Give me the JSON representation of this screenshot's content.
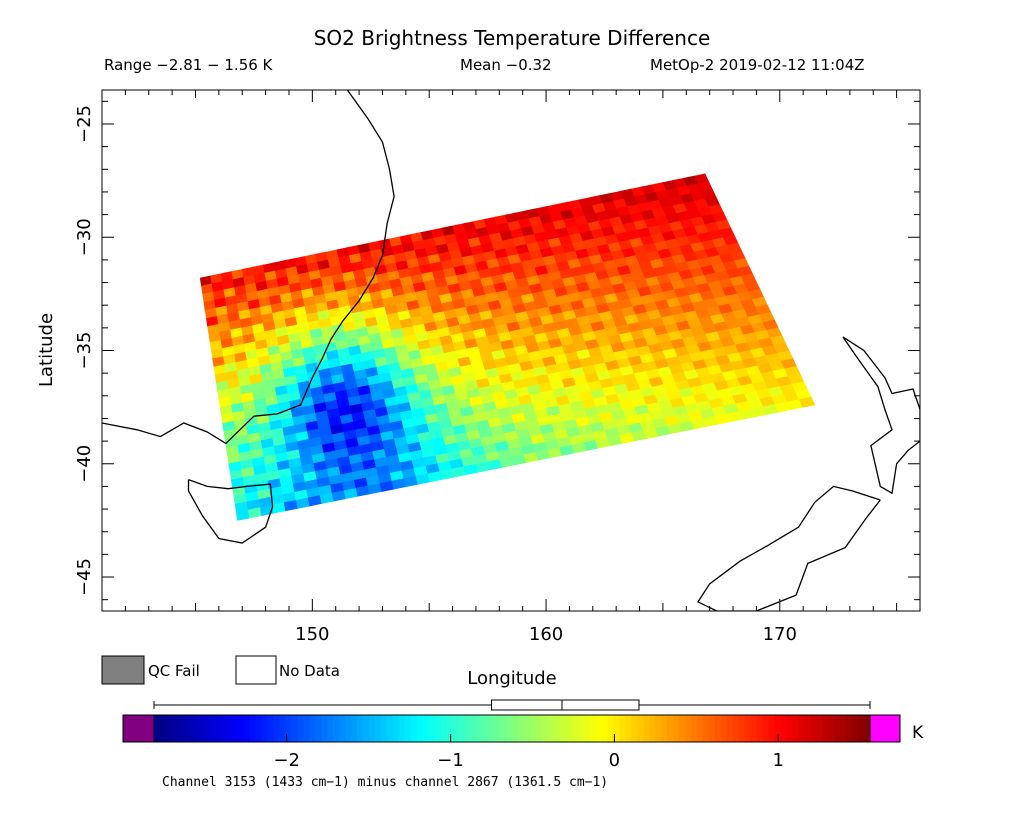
{
  "title": "SO2 Brightness Temperature Difference",
  "range_text": "Range −2.81 − 1.56 K",
  "mean_text": "Mean −0.32",
  "satellite_text": "MetOp-2 2019-02-12 11:04Z",
  "axes": {
    "xlabel": "Longitude",
    "ylabel": "Latitude",
    "xlim": [
      141,
      176
    ],
    "ylim": [
      -46.5,
      -23.5
    ],
    "xticks": [
      150,
      160,
      170
    ],
    "xtick_labels": [
      "150",
      "160",
      "170"
    ],
    "yticks": [
      -25,
      -30,
      -35,
      -40,
      -45
    ],
    "ytick_labels": [
      "−25",
      "−30",
      "−35",
      "−40",
      "−45"
    ]
  },
  "legend": {
    "qc_fail_label": "QC Fail",
    "no_data_label": "No Data",
    "qc_fail_color": "#808080",
    "no_data_color": "#ffffff"
  },
  "colorbar": {
    "min": -2.81,
    "max": 1.56,
    "unit": "K",
    "ticks": [
      -2,
      -1,
      0,
      1
    ],
    "tick_labels": [
      "−2",
      "−1",
      "0",
      "1"
    ],
    "under_color": "#800080",
    "over_color": "#ff00ff",
    "box_whisker": {
      "min": -2.81,
      "q1": -0.75,
      "median": -0.32,
      "q3": 0.15,
      "max": 1.56
    }
  },
  "footnote": "Channel 3153 (1433 cm−1) minus channel 2867 (1361.5 cm−1)",
  "chart_data": {
    "type": "heatmap",
    "title": "SO2 Brightness Temperature Difference",
    "xlabel": "Longitude",
    "ylabel": "Latitude",
    "xlim": [
      141,
      176
    ],
    "ylim": [
      -46.5,
      -23.5
    ],
    "value_range": [
      -2.81,
      1.56
    ],
    "mean": -0.32,
    "unit": "K",
    "swath_corners": [
      [
        145.2,
        -31.8
      ],
      [
        166.8,
        -27.2
      ],
      [
        171.5,
        -37.4
      ],
      [
        146.8,
        -42.5
      ]
    ],
    "coastlines": {
      "australia": [
        [
          141,
          -38.2
        ],
        [
          142.5,
          -38.5
        ],
        [
          143.5,
          -38.8
        ],
        [
          144.5,
          -38.2
        ],
        [
          145.5,
          -38.6
        ],
        [
          146.3,
          -39.1
        ],
        [
          147.5,
          -37.9
        ],
        [
          148.5,
          -37.8
        ],
        [
          149.5,
          -37.4
        ],
        [
          150.0,
          -36.2
        ],
        [
          150.4,
          -35.4
        ],
        [
          150.8,
          -34.5
        ],
        [
          151.3,
          -33.7
        ],
        [
          152.0,
          -32.8
        ],
        [
          152.6,
          -31.8
        ],
        [
          153.0,
          -30.8
        ],
        [
          153.2,
          -29.4
        ],
        [
          153.5,
          -28.2
        ],
        [
          153.3,
          -27.0
        ],
        [
          153.0,
          -25.8
        ],
        [
          152.4,
          -24.8
        ],
        [
          151.5,
          -23.5
        ]
      ],
      "tasmania": [
        [
          144.7,
          -40.7
        ],
        [
          145.5,
          -41.0
        ],
        [
          146.4,
          -41.1
        ],
        [
          147.2,
          -41.0
        ],
        [
          148.2,
          -40.9
        ],
        [
          148.3,
          -41.9
        ],
        [
          148.0,
          -42.8
        ],
        [
          147.0,
          -43.5
        ],
        [
          146.0,
          -43.3
        ],
        [
          145.3,
          -42.3
        ],
        [
          144.7,
          -41.2
        ],
        [
          144.7,
          -40.7
        ]
      ],
      "new_zealand_north": [
        [
          172.7,
          -34.4
        ],
        [
          173.6,
          -35.0
        ],
        [
          174.5,
          -36.2
        ],
        [
          174.8,
          -36.9
        ],
        [
          175.7,
          -36.7
        ],
        [
          176.0,
          -37.6
        ],
        [
          176.0,
          -39.0
        ],
        [
          175.5,
          -39.4
        ],
        [
          175.0,
          -40.0
        ],
        [
          174.8,
          -41.3
        ],
        [
          174.3,
          -41.0
        ],
        [
          173.9,
          -39.2
        ],
        [
          174.8,
          -38.5
        ],
        [
          174.5,
          -37.6
        ],
        [
          174.2,
          -36.6
        ],
        [
          173.3,
          -35.3
        ],
        [
          172.7,
          -34.4
        ]
      ],
      "new_zealand_south": [
        [
          174.3,
          -41.6
        ],
        [
          173.1,
          -41.2
        ],
        [
          172.3,
          -41.0
        ],
        [
          171.5,
          -41.7
        ],
        [
          170.8,
          -42.8
        ],
        [
          169.5,
          -43.6
        ],
        [
          168.3,
          -44.3
        ],
        [
          167.0,
          -45.3
        ],
        [
          166.5,
          -46.1
        ],
        [
          167.3,
          -46.5
        ],
        [
          169.0,
          -46.5
        ],
        [
          170.7,
          -45.8
        ],
        [
          171.2,
          -44.4
        ],
        [
          172.8,
          -43.7
        ],
        [
          173.7,
          -42.4
        ],
        [
          174.3,
          -41.6
        ]
      ]
    }
  }
}
